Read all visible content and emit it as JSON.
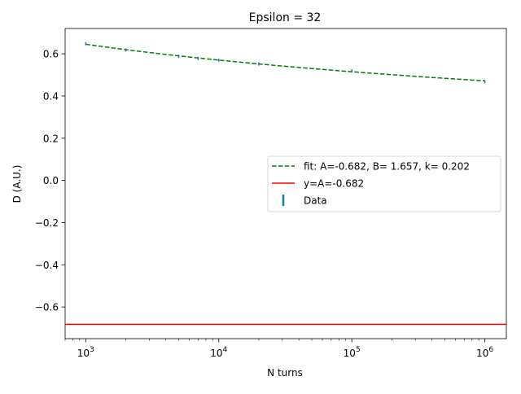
{
  "chart_data": {
    "type": "line",
    "title": "Epsilon = 32",
    "xlabel": "N turns",
    "ylabel": "D (A.U.)",
    "xscale": "log",
    "xlim": [
      700,
      1450000
    ],
    "ylim": [
      -0.75,
      0.72
    ],
    "grid": false,
    "legend_position": "center-right",
    "x_ticks": [
      {
        "value": 1000,
        "base": "10",
        "exp": "3"
      },
      {
        "value": 10000,
        "base": "10",
        "exp": "4"
      },
      {
        "value": 100000,
        "base": "10",
        "exp": "5"
      },
      {
        "value": 1000000,
        "base": "10",
        "exp": "6"
      }
    ],
    "y_ticks": [
      {
        "value": 0.6,
        "label": "0.6"
      },
      {
        "value": 0.4,
        "label": "0.4"
      },
      {
        "value": 0.2,
        "label": "0.2"
      },
      {
        "value": 0.0,
        "label": "0.0"
      },
      {
        "value": -0.2,
        "label": "−0.2"
      },
      {
        "value": -0.4,
        "label": "−0.4"
      },
      {
        "value": -0.6,
        "label": "−0.6"
      }
    ],
    "fit": {
      "label": "fit: A=-0.682, B= 1.657, k= 0.202",
      "A": -0.682,
      "B": 1.657,
      "k": 0.202,
      "color": "#008000",
      "style": "dashed"
    },
    "asymptote": {
      "label": "y=A=-0.682",
      "value": -0.682,
      "color": "#ff0000"
    },
    "data": {
      "label": "Data",
      "color": "#1f77b4",
      "x": [
        1000,
        2000,
        5000,
        7000,
        10000,
        20000,
        100000,
        1000000
      ],
      "y": [
        0.648,
        0.618,
        0.588,
        0.578,
        0.57,
        0.552,
        0.519,
        0.468
      ]
    }
  }
}
